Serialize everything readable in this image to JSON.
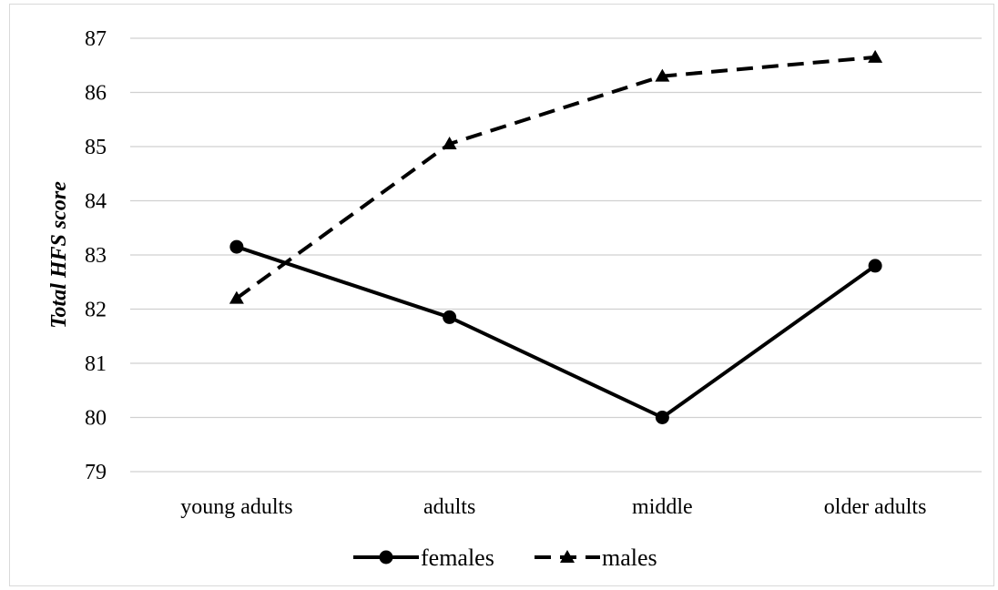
{
  "chart_data": {
    "type": "line",
    "categories": [
      "young adults",
      "adults",
      "middle",
      "older adults"
    ],
    "series": [
      {
        "name": "females",
        "values": [
          83.15,
          81.85,
          80.0,
          82.8
        ],
        "marker": "circle",
        "dash": "solid",
        "color": "#000000"
      },
      {
        "name": "males",
        "values": [
          82.2,
          85.05,
          86.3,
          86.65
        ],
        "marker": "triangle",
        "dash": "dashed",
        "color": "#000000"
      }
    ],
    "title": "",
    "xlabel": "",
    "ylabel": "Total HFS score",
    "ylim": [
      79,
      87
    ],
    "yticks": [
      79,
      80,
      81,
      82,
      83,
      84,
      85,
      86,
      87
    ],
    "grid": true,
    "gridline_color": "#d0d0d0",
    "legend_position": "bottom"
  }
}
